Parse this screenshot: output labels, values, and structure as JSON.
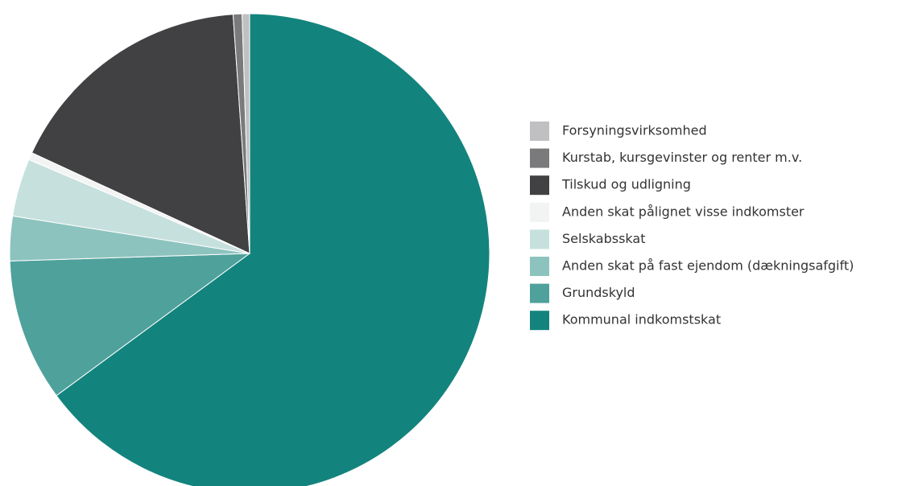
{
  "chart_data": {
    "type": "pie",
    "categories": [
      "Forsyningsvirksomhed",
      "Kurstab, kursgevinster og renter m.v.",
      "Tilskud og udligning",
      "Anden skat pålignet visse indkomster",
      "Selskabsskat",
      "Anden skat på fast ejendom (dækningsafgift)",
      "Grundskyld",
      "Kommunal indkomstskat"
    ],
    "values": [
      0.5,
      0.6,
      17.0,
      0.5,
      3.9,
      3.0,
      9.6,
      64.9
    ],
    "colors": [
      "#c0bfc2",
      "#7a797b",
      "#414042",
      "#f2f4f3",
      "#c6e0dd",
      "#8dc3be",
      "#4fa19b",
      "#13837d"
    ],
    "legend": "right"
  }
}
